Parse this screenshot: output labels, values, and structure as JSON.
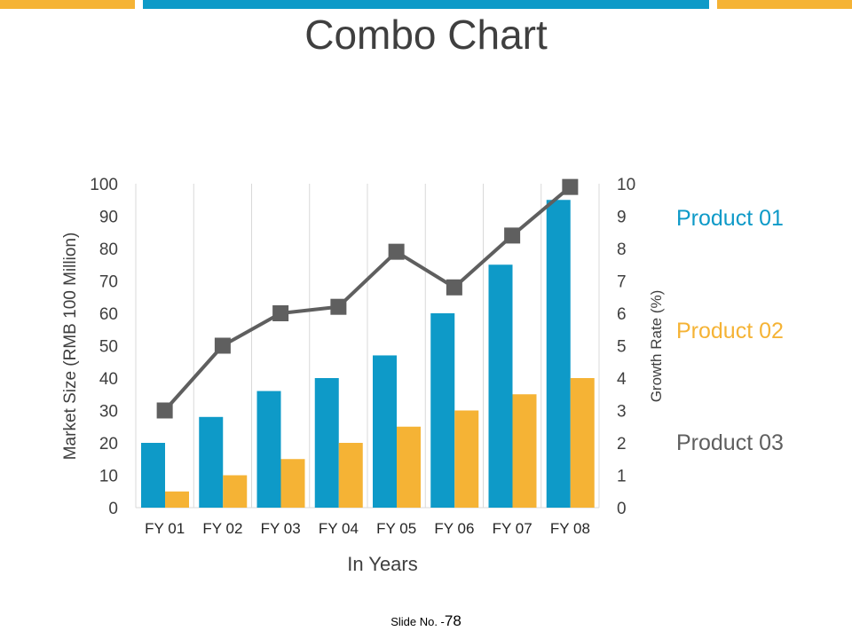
{
  "slide": {
    "title": "Combo Chart",
    "footer_label": "Slide No. -",
    "footer_number": "78"
  },
  "colors": {
    "blue": "#0e9ac8",
    "yellow": "#f5b335",
    "gray": "#5f5f5f",
    "title": "#3f3f3f"
  },
  "chart_data": {
    "type": "bar+line",
    "title": "Combo Chart",
    "categories": [
      "FY 01",
      "FY 02",
      "FY 03",
      "FY 04",
      "FY 05",
      "FY 06",
      "FY 07",
      "FY 08"
    ],
    "xlabel": "In Years",
    "ylabel": "Market Size (RMB 100 Million)",
    "y2label": "Growth Rate (%)",
    "ylim": [
      0,
      100
    ],
    "y2lim": [
      0,
      10
    ],
    "yticks": [
      "0",
      "10",
      "20",
      "30",
      "40",
      "50",
      "60",
      "70",
      "80",
      "90",
      "100"
    ],
    "y2ticks": [
      "0",
      "1",
      "2",
      "3",
      "4",
      "5",
      "6",
      "7",
      "8",
      "9",
      "10"
    ],
    "series": [
      {
        "name": "Product 01",
        "type": "bar",
        "axis": "left",
        "values": [
          20,
          28,
          36,
          40,
          47,
          60,
          75,
          95
        ]
      },
      {
        "name": "Product 02",
        "type": "bar",
        "axis": "left",
        "values": [
          5,
          10,
          15,
          20,
          25,
          30,
          35,
          40
        ]
      },
      {
        "name": "Product 03",
        "type": "line",
        "axis": "right",
        "values": [
          3.0,
          5.0,
          6.0,
          6.2,
          7.9,
          6.8,
          8.4,
          9.9
        ]
      }
    ],
    "legend_position": "right",
    "grid": "vertical"
  }
}
